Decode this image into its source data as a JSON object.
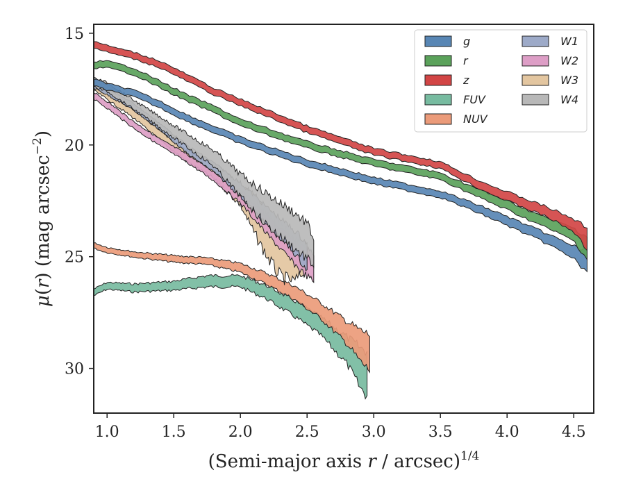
{
  "chart_data": {
    "type": "area",
    "xlabel": "(Semi-major axis r / arcsec)^1/4",
    "ylabel": "μ(r) (mag arcsec^−2)",
    "xlim": [
      0.9,
      4.65
    ],
    "ylim": [
      15,
      32
    ],
    "y_inverted": true,
    "xticks": [
      "1.0",
      "1.5",
      "2.0",
      "2.5",
      "3.0",
      "3.5",
      "4.0",
      "4.5"
    ],
    "yticks": [
      "15",
      "20",
      "25",
      "30"
    ],
    "legend": {
      "position": "top-right",
      "columns": 2
    },
    "series": [
      {
        "name": "g",
        "color": "#5886b4",
        "x": [
          0.9,
          1.0,
          1.2,
          1.4,
          1.6,
          1.8,
          2.0,
          2.5,
          3.0,
          3.5,
          3.8,
          4.0,
          4.3,
          4.5,
          4.6
        ],
        "y": [
          17.2,
          17.4,
          17.7,
          18.2,
          18.8,
          19.3,
          19.8,
          20.8,
          21.6,
          22.2,
          22.9,
          23.4,
          24.2,
          24.8,
          25.3
        ],
        "halfwidth": [
          0.15,
          0.15,
          0.15,
          0.15,
          0.15,
          0.15,
          0.15,
          0.15,
          0.15,
          0.15,
          0.18,
          0.2,
          0.22,
          0.28,
          0.5
        ]
      },
      {
        "name": "r",
        "color": "#5ba25b",
        "x": [
          0.9,
          1.0,
          1.2,
          1.4,
          1.6,
          1.8,
          2.0,
          2.5,
          3.0,
          3.5,
          3.8,
          4.0,
          4.3,
          4.5,
          4.6
        ],
        "y": [
          16.4,
          16.4,
          16.7,
          17.3,
          17.9,
          18.4,
          19.0,
          20.0,
          20.8,
          21.4,
          22.2,
          22.7,
          23.5,
          24.0,
          24.6
        ],
        "halfwidth": [
          0.15,
          0.15,
          0.15,
          0.15,
          0.15,
          0.15,
          0.15,
          0.15,
          0.15,
          0.15,
          0.18,
          0.2,
          0.22,
          0.28,
          0.5
        ]
      },
      {
        "name": "z",
        "color": "#d24545",
        "x": [
          0.9,
          1.0,
          1.2,
          1.4,
          1.6,
          1.8,
          2.0,
          2.5,
          3.0,
          3.5,
          3.8,
          4.0,
          4.3,
          4.5,
          4.6
        ],
        "y": [
          15.5,
          15.7,
          16.0,
          16.4,
          17.0,
          17.6,
          18.1,
          19.3,
          20.3,
          20.9,
          21.8,
          22.3,
          23.0,
          23.6,
          24.2
        ],
        "halfwidth": [
          0.15,
          0.15,
          0.15,
          0.15,
          0.15,
          0.15,
          0.15,
          0.15,
          0.15,
          0.15,
          0.18,
          0.2,
          0.22,
          0.28,
          0.5
        ]
      },
      {
        "name": "FUV",
        "color": "#77bba0",
        "x": [
          0.9,
          1.0,
          1.2,
          1.5,
          1.75,
          2.0,
          2.2,
          2.4,
          2.6,
          2.8,
          2.9,
          2.95
        ],
        "y": [
          26.6,
          26.3,
          26.4,
          26.3,
          26.1,
          26.1,
          26.6,
          27.3,
          28.1,
          29.2,
          30.0,
          30.2
        ],
        "halfwidth": [
          0.15,
          0.15,
          0.18,
          0.2,
          0.25,
          0.25,
          0.3,
          0.35,
          0.4,
          0.6,
          0.9,
          1.0
        ]
      },
      {
        "name": "NUV",
        "color": "#eb9b7a",
        "x": [
          0.9,
          1.0,
          1.2,
          1.5,
          1.75,
          2.0,
          2.2,
          2.4,
          2.6,
          2.8,
          2.9,
          2.97
        ],
        "y": [
          24.5,
          24.7,
          24.9,
          25.1,
          25.2,
          25.5,
          26.0,
          26.6,
          27.4,
          28.4,
          29.0,
          29.3
        ],
        "halfwidth": [
          0.12,
          0.12,
          0.12,
          0.15,
          0.15,
          0.2,
          0.25,
          0.3,
          0.35,
          0.5,
          0.7,
          0.8
        ]
      },
      {
        "name": "W1",
        "color": "#9daac8",
        "x": [
          0.9,
          1.0,
          1.2,
          1.4,
          1.6,
          1.8,
          2.0,
          2.2,
          2.4,
          2.5
        ],
        "y": [
          17.3,
          17.6,
          18.3,
          19.2,
          20.2,
          21.0,
          22.0,
          23.2,
          24.3,
          25.0
        ],
        "halfwidth": [
          0.15,
          0.15,
          0.15,
          0.15,
          0.18,
          0.2,
          0.3,
          0.4,
          0.5,
          0.6
        ]
      },
      {
        "name": "W2",
        "color": "#dd9ec6",
        "x": [
          0.9,
          1.0,
          1.2,
          1.4,
          1.6,
          1.8,
          2.0,
          2.2,
          2.4,
          2.5,
          2.55
        ],
        "y": [
          17.8,
          18.2,
          19.1,
          19.9,
          20.6,
          21.4,
          22.3,
          23.6,
          24.8,
          25.3,
          25.5
        ],
        "halfwidth": [
          0.15,
          0.15,
          0.15,
          0.15,
          0.18,
          0.2,
          0.3,
          0.4,
          0.5,
          0.6,
          0.6
        ]
      },
      {
        "name": "W3",
        "color": "#e3c6a0",
        "x": [
          0.9,
          1.0,
          1.2,
          1.4,
          1.6,
          1.8,
          2.0,
          2.1,
          2.2,
          2.3,
          2.4,
          2.5
        ],
        "y": [
          17.4,
          17.8,
          18.6,
          19.6,
          20.5,
          21.2,
          22.2,
          23.1,
          24.0,
          24.8,
          25.2,
          25.0
        ],
        "halfwidth": [
          0.15,
          0.15,
          0.2,
          0.2,
          0.25,
          0.3,
          0.5,
          0.8,
          1.0,
          1.1,
          0.9,
          0.6
        ]
      },
      {
        "name": "W4",
        "color": "#b8b8b8",
        "x": [
          0.9,
          1.0,
          1.2,
          1.4,
          1.6,
          1.8,
          2.0,
          2.2,
          2.4,
          2.5,
          2.55
        ],
        "y": [
          17.2,
          17.4,
          18.2,
          19.0,
          19.8,
          20.6,
          21.8,
          22.9,
          23.8,
          24.3,
          24.8
        ],
        "halfwidth": [
          0.2,
          0.2,
          0.2,
          0.25,
          0.3,
          0.35,
          0.5,
          0.7,
          0.8,
          0.8,
          0.6
        ]
      }
    ]
  }
}
